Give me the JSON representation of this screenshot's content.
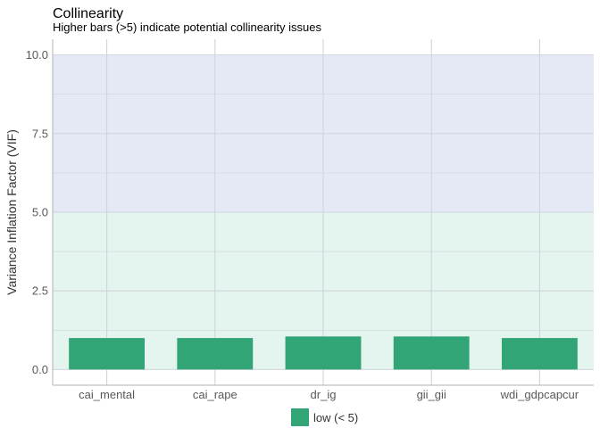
{
  "chart_data": {
    "type": "bar",
    "title": "Collinearity",
    "subtitle": "Higher bars (>5) indicate potential collinearity issues",
    "xlabel": "",
    "ylabel": "Variance Inflation Factor (VIF)",
    "categories": [
      "cai_mental",
      "cai_rape",
      "dr_ig",
      "gii_gii",
      "wdi_gdpcapcur"
    ],
    "values": [
      1.0,
      1.0,
      1.05,
      1.05,
      1.0
    ],
    "ylim": [
      -0.5,
      10.5
    ],
    "yticks": [
      0.0,
      2.5,
      5.0,
      7.5,
      10.0
    ],
    "ytick_labels": [
      "0.0",
      "2.5",
      "5.0",
      "7.5",
      "10.0"
    ],
    "bands": [
      {
        "from": 0,
        "to": 5,
        "color": "#e4f4ef"
      },
      {
        "from": 5,
        "to": 10,
        "color": "#e5e9f5"
      }
    ],
    "bar_color": "#31a575",
    "grid": true,
    "legend": {
      "position": "bottom",
      "entries": [
        {
          "label": "low (< 5)",
          "color": "#31a575"
        }
      ]
    }
  }
}
